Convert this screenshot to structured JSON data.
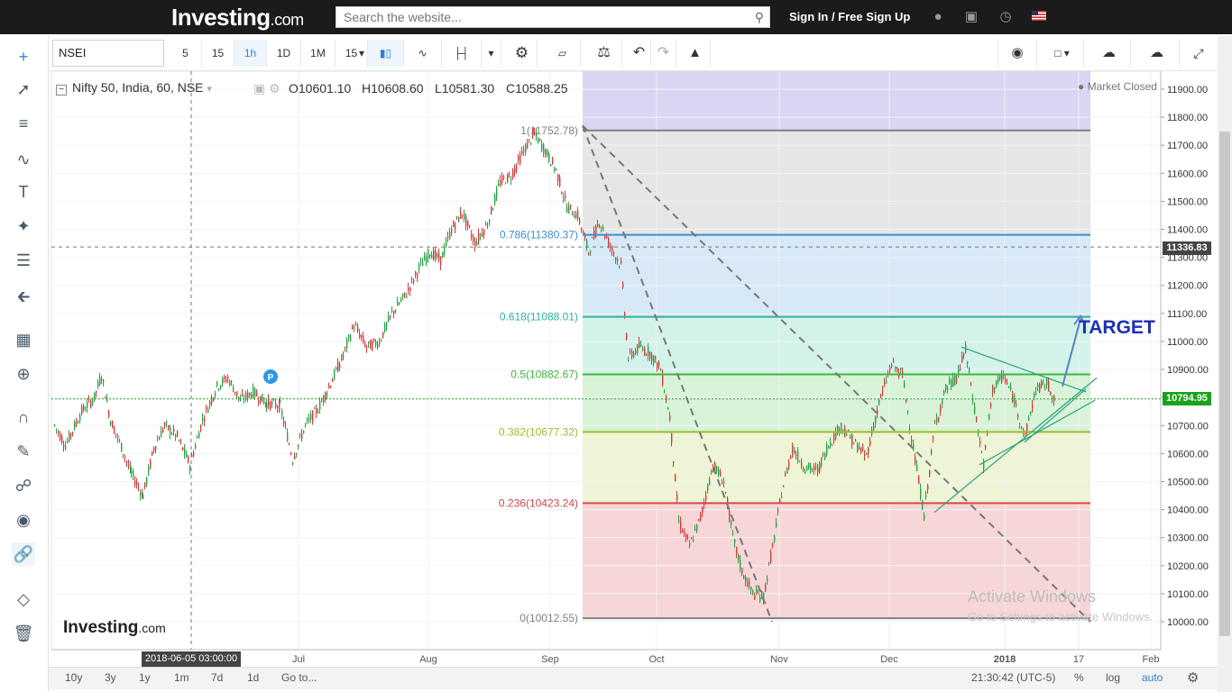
{
  "topbar": {
    "logo": "Investing",
    "logo_suffix": ".com",
    "search_placeholder": "Search the website...",
    "signin": "Sign In / Free Sign Up",
    "icons": [
      "bell-icon",
      "briefcase-icon",
      "clock-icon",
      "us-flag-icon"
    ]
  },
  "toolbar": {
    "symbol": "NSEI",
    "intervals": [
      "5",
      "15",
      "1h",
      "1D",
      "1M",
      "15"
    ],
    "active_interval": "1h"
  },
  "legend": {
    "title": "Nifty 50, India, 60, NSE",
    "open_label": "O",
    "open": "10601.10",
    "high_label": "H",
    "high": "10608.60",
    "low_label": "L",
    "low": "10581.30",
    "close_label": "C",
    "close": "10588.25",
    "market_status": "Market Closed"
  },
  "chart_data": {
    "type": "candlestick",
    "y_axis": {
      "ticks": [
        "11900.00",
        "11800.00",
        "11700.00",
        "11600.00",
        "11500.00",
        "11400.00",
        "11300.00",
        "11200.00",
        "11100.00",
        "11000.00",
        "10900.00",
        "10800.00",
        "10700.00",
        "10600.00",
        "10500.00",
        "10400.00",
        "10300.00",
        "10200.00",
        "10100.00",
        "10000.00"
      ],
      "range": [
        9985,
        11935
      ]
    },
    "x_axis": {
      "ticks": [
        "Jul",
        "Aug",
        "Sep",
        "Oct",
        "Nov",
        "Dec",
        "2018",
        "17",
        "Feb"
      ],
      "crosshair_label": "2018-06-05 03:00:00"
    },
    "crosshair_price": "11336.83",
    "last_price": "10794.95",
    "fibonacci": [
      {
        "label": "1(11752.78)",
        "value": 11752.78,
        "color": "#808080"
      },
      {
        "label": "0.786(11380.37)",
        "value": 11380.37,
        "color": "#3d8fd1"
      },
      {
        "label": "0.618(11088.01)",
        "value": 11088.01,
        "color": "#2db39a"
      },
      {
        "label": "0.5(10882.67)",
        "value": 10882.67,
        "color": "#3cb93c"
      },
      {
        "label": "0.382(10677.32)",
        "value": 10677.32,
        "color": "#9bbd2e"
      },
      {
        "label": "0.236(10423.24)",
        "value": 10423.24,
        "color": "#d34848"
      },
      {
        "label": "0(10012.55)",
        "value": 10012.55,
        "color": "#808080"
      }
    ],
    "annotation": "TARGET",
    "path": [
      [
        60,
        10700
      ],
      [
        72,
        10630
      ],
      [
        90,
        10750
      ],
      [
        104,
        10800
      ],
      [
        112,
        10880
      ],
      [
        122,
        10720
      ],
      [
        132,
        10640
      ],
      [
        145,
        10530
      ],
      [
        158,
        10450
      ],
      [
        170,
        10620
      ],
      [
        182,
        10700
      ],
      [
        196,
        10660
      ],
      [
        210,
        10560
      ],
      [
        224,
        10720
      ],
      [
        240,
        10840
      ],
      [
        252,
        10870
      ],
      [
        266,
        10790
      ],
      [
        280,
        10820
      ],
      [
        295,
        10780
      ],
      [
        310,
        10770
      ],
      [
        324,
        10580
      ],
      [
        338,
        10700
      ],
      [
        352,
        10760
      ],
      [
        366,
        10850
      ],
      [
        380,
        10950
      ],
      [
        392,
        11060
      ],
      [
        406,
        10980
      ],
      [
        420,
        11000
      ],
      [
        434,
        11100
      ],
      [
        450,
        11170
      ],
      [
        464,
        11260
      ],
      [
        476,
        11320
      ],
      [
        488,
        11290
      ],
      [
        500,
        11400
      ],
      [
        512,
        11460
      ],
      [
        526,
        11350
      ],
      [
        540,
        11420
      ],
      [
        554,
        11570
      ],
      [
        566,
        11590
      ],
      [
        580,
        11680
      ],
      [
        592,
        11740
      ],
      [
        604,
        11680
      ],
      [
        616,
        11610
      ],
      [
        628,
        11480
      ],
      [
        640,
        11450
      ],
      [
        652,
        11320
      ],
      [
        664,
        11430
      ],
      [
        676,
        11340
      ],
      [
        688,
        11270
      ],
      [
        696,
        10940
      ],
      [
        708,
        10980
      ],
      [
        720,
        10960
      ],
      [
        732,
        10900
      ],
      [
        742,
        10730
      ],
      [
        752,
        10360
      ],
      [
        764,
        10270
      ],
      [
        776,
        10370
      ],
      [
        790,
        10560
      ],
      [
        802,
        10500
      ],
      [
        812,
        10300
      ],
      [
        822,
        10180
      ],
      [
        834,
        10100
      ],
      [
        846,
        10090
      ],
      [
        858,
        10300
      ],
      [
        866,
        10460
      ],
      [
        878,
        10620
      ],
      [
        892,
        10550
      ],
      [
        906,
        10540
      ],
      [
        918,
        10630
      ],
      [
        932,
        10700
      ],
      [
        946,
        10640
      ],
      [
        960,
        10590
      ],
      [
        974,
        10780
      ],
      [
        988,
        10920
      ],
      [
        1000,
        10880
      ],
      [
        1012,
        10620
      ],
      [
        1024,
        10380
      ],
      [
        1036,
        10700
      ],
      [
        1048,
        10830
      ],
      [
        1060,
        10870
      ],
      [
        1070,
        10970
      ],
      [
        1080,
        10760
      ],
      [
        1090,
        10560
      ],
      [
        1100,
        10830
      ],
      [
        1112,
        10880
      ],
      [
        1124,
        10790
      ],
      [
        1136,
        10660
      ],
      [
        1148,
        10830
      ],
      [
        1160,
        10850
      ],
      [
        1170,
        10790
      ]
    ]
  },
  "watermark": {
    "logo": "Investing",
    "logo_suffix": ".com",
    "activate_title": "Activate Windows",
    "activate_sub": "Go to Settings to activate Windows."
  },
  "bottombar": {
    "ranges": [
      "10y",
      "3y",
      "1y",
      "1m",
      "7d",
      "1d"
    ],
    "goto": "Go to...",
    "time": "21:30:42 (UTC-5)",
    "percent": "%",
    "log": "log",
    "auto": "auto"
  },
  "colors": {
    "up": "#26a69a",
    "down": "#ef5350",
    "accent": "#2c83d6",
    "target": "#1c2fb8"
  }
}
